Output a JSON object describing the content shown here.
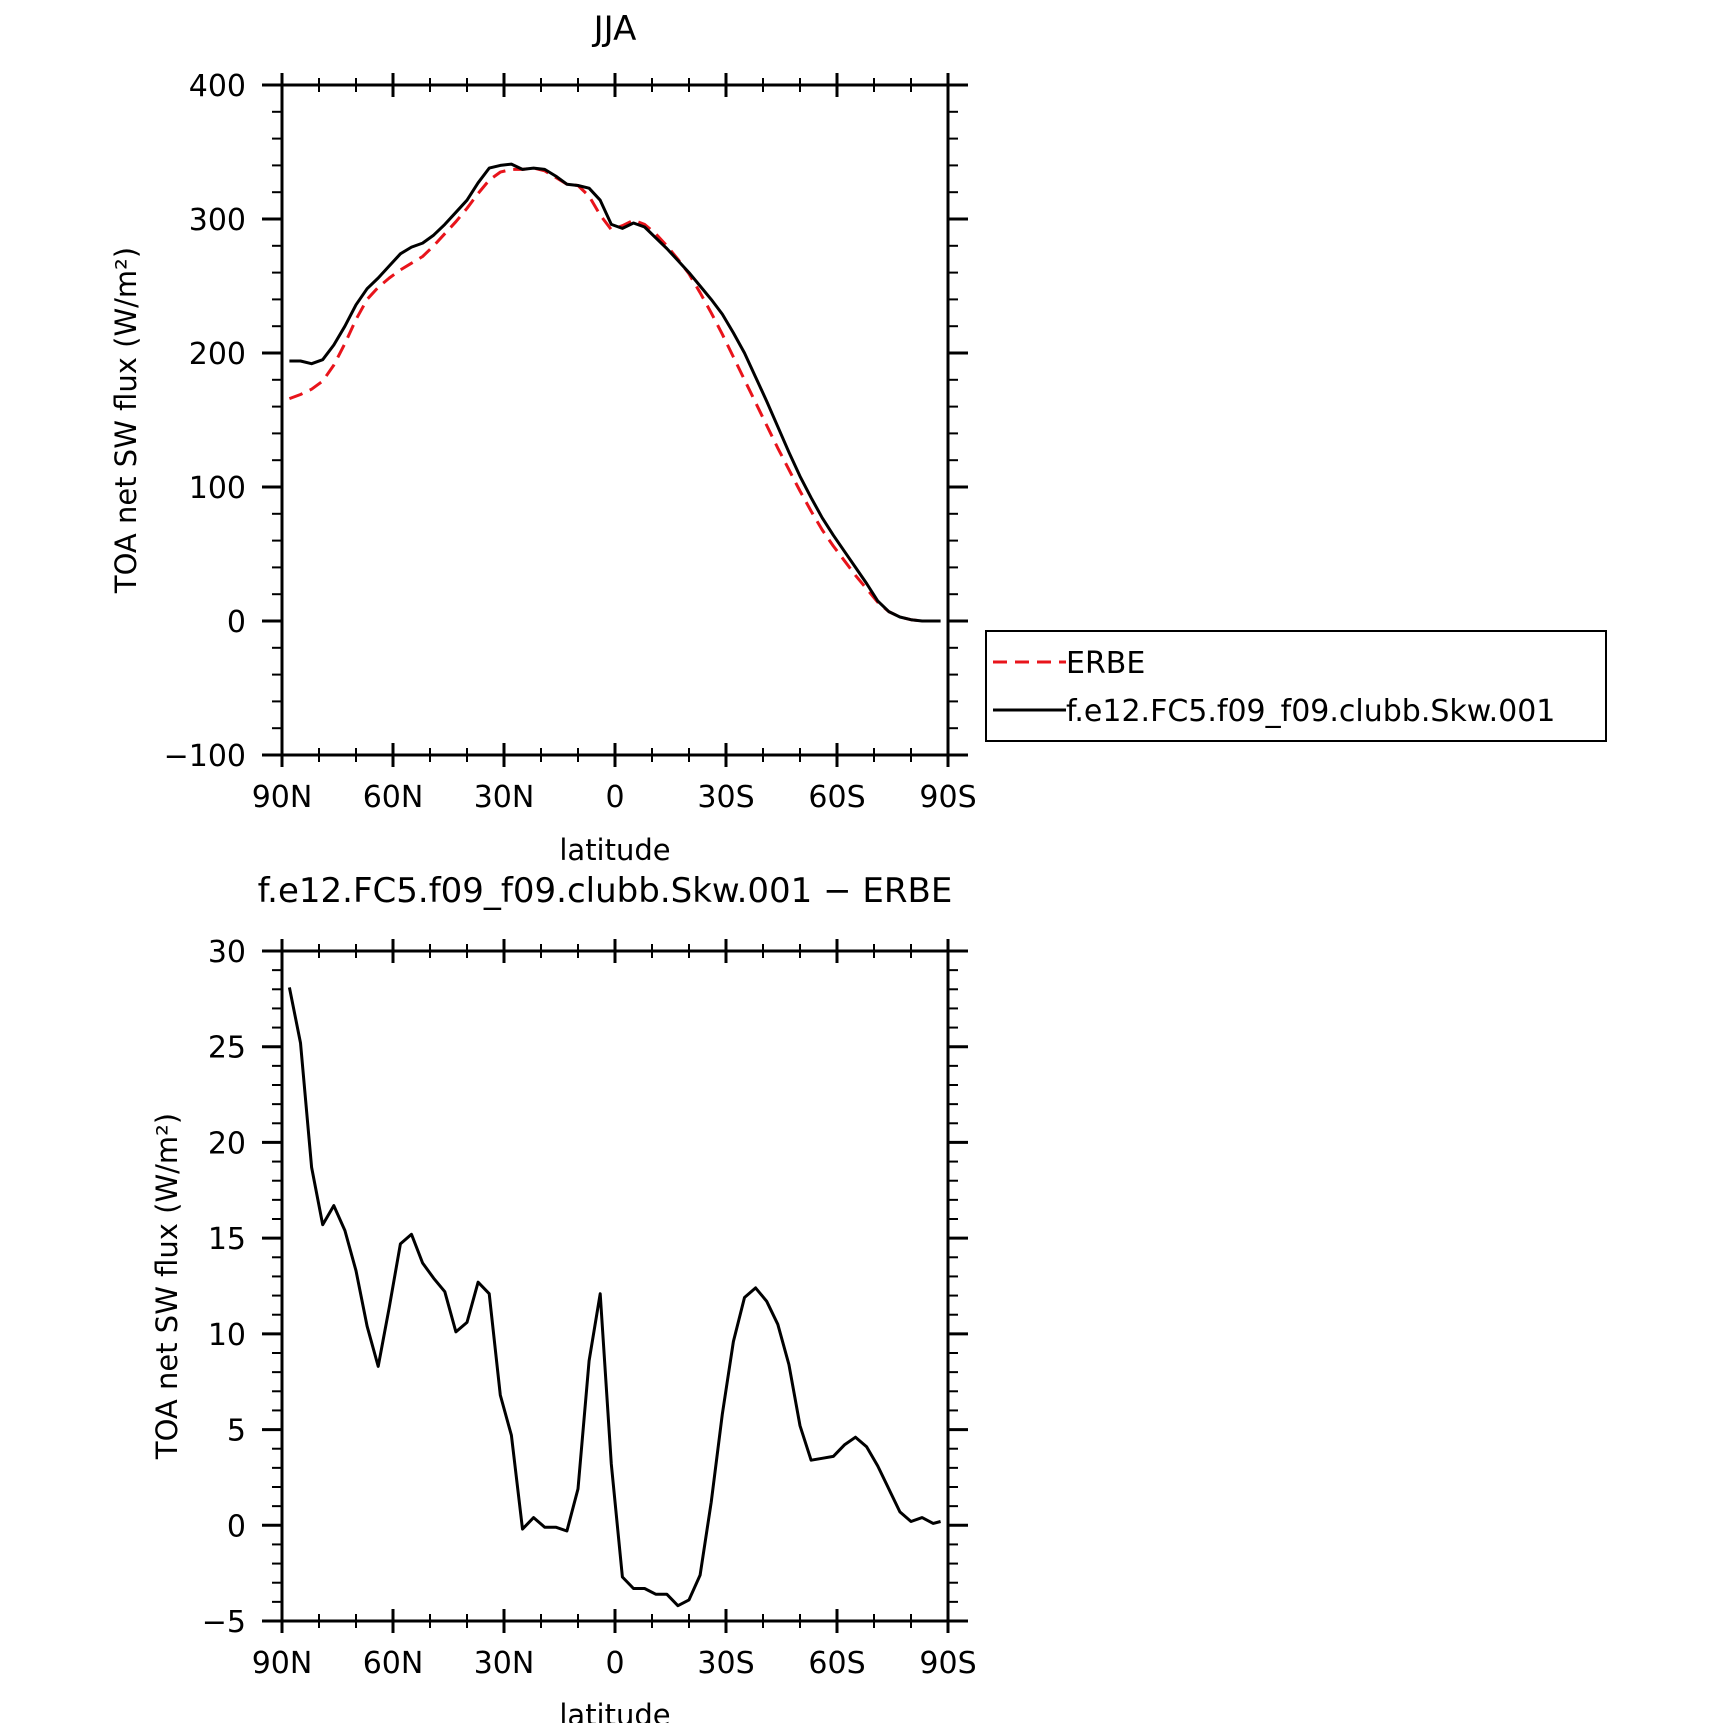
{
  "chart_data": [
    {
      "type": "line",
      "title": "JJA",
      "xlabel": "latitude",
      "ylabel": "TOA net SW flux (W/m²)",
      "ylim": [
        -100,
        400
      ],
      "yticks": [
        -100,
        0,
        100,
        200,
        300,
        400
      ],
      "ytick_labels": [
        "−100",
        "0",
        "100",
        "200",
        "300",
        "400"
      ],
      "xlim": [
        90,
        -90
      ],
      "xticks": [
        90,
        60,
        30,
        0,
        -30,
        -60,
        -90
      ],
      "xtick_labels": [
        "90N",
        "60N",
        "30N",
        "0",
        "30S",
        "60S",
        "90S"
      ],
      "legend_position": "right",
      "series": [
        {
          "name": "ERBE",
          "color": "#e8141b",
          "dash": "dashed",
          "x": [
            88,
            85,
            82,
            79,
            76,
            73,
            70,
            67,
            64,
            61,
            58,
            55,
            52,
            49,
            46,
            43,
            40,
            37,
            34,
            31,
            28,
            25,
            22,
            19,
            16,
            13,
            10,
            7,
            4,
            1,
            -2,
            -5,
            -8,
            -11,
            -14,
            -17,
            -20,
            -23,
            -26,
            -29,
            -32,
            -35,
            -38,
            -41,
            -44,
            -47,
            -50,
            -53,
            -56,
            -59,
            -62,
            -65,
            -68,
            -71,
            -74,
            -77,
            -80,
            -83,
            -86,
            -88
          ],
          "values": [
            166,
            169,
            173,
            179,
            191,
            207,
            225,
            240,
            249,
            256,
            262,
            267,
            272,
            280,
            289,
            298,
            308,
            319,
            329,
            335,
            337,
            337,
            338,
            336,
            331,
            326,
            325,
            317,
            303,
            292,
            295,
            299,
            296,
            289,
            280,
            270,
            259,
            245,
            230,
            214,
            197,
            180,
            163,
            146,
            129,
            113,
            97,
            82,
            68,
            56,
            45,
            34,
            24,
            14,
            7,
            3,
            1,
            0,
            0,
            0
          ]
        },
        {
          "name": "f.e12.FC5.f09_f09.clubb.Skw.001",
          "color": "#000000",
          "dash": "solid",
          "x": [
            88,
            85,
            82,
            79,
            76,
            73,
            70,
            67,
            64,
            61,
            58,
            55,
            52,
            49,
            46,
            43,
            40,
            37,
            34,
            31,
            28,
            25,
            22,
            19,
            16,
            13,
            10,
            7,
            4,
            1,
            -2,
            -5,
            -8,
            -11,
            -14,
            -17,
            -20,
            -23,
            -26,
            -29,
            -32,
            -35,
            -38,
            -41,
            -44,
            -47,
            -50,
            -53,
            -56,
            -59,
            -62,
            -65,
            -68,
            -71,
            -74,
            -77,
            -80,
            -83,
            -86,
            -88
          ],
          "values": [
            194,
            194,
            192,
            195,
            206,
            220,
            236,
            248,
            256,
            265,
            274,
            279,
            282,
            288,
            296,
            305,
            314,
            327,
            338,
            340,
            341,
            337,
            338,
            337,
            332,
            326,
            325,
            323,
            314,
            296,
            293,
            297,
            294,
            286,
            278,
            269,
            260,
            250,
            240,
            229,
            215,
            200,
            182,
            164,
            145,
            126,
            108,
            92,
            77,
            64,
            52,
            40,
            28,
            15,
            7,
            3,
            1,
            0,
            0,
            0
          ]
        }
      ]
    },
    {
      "type": "line",
      "title": "f.e12.FC5.f09_f09.clubb.Skw.001 − ERBE",
      "xlabel": "latitude",
      "ylabel": "TOA net SW flux (W/m²)",
      "ylim": [
        -5,
        30
      ],
      "yticks": [
        -5,
        0,
        5,
        10,
        15,
        20,
        25,
        30
      ],
      "ytick_labels": [
        "−5",
        "0",
        "5",
        "10",
        "15",
        "20",
        "25",
        "30"
      ],
      "xlim": [
        90,
        -90
      ],
      "xticks": [
        90,
        60,
        30,
        0,
        -30,
        -60,
        -90
      ],
      "xtick_labels": [
        "90N",
        "60N",
        "30N",
        "0",
        "30S",
        "60S",
        "90S"
      ],
      "series": [
        {
          "color": "#000000",
          "dash": "solid",
          "x": [
            88,
            85,
            82,
            79,
            76,
            73,
            70,
            67,
            64,
            61,
            58,
            55,
            52,
            49,
            46,
            43,
            40,
            37,
            34,
            31,
            28,
            25,
            22,
            19,
            16,
            13,
            10,
            7,
            4,
            1,
            -2,
            -5,
            -8,
            -11,
            -14,
            -17,
            -20,
            -23,
            -26,
            -29,
            -32,
            -35,
            -38,
            -41,
            -44,
            -47,
            -50,
            -53,
            -56,
            -59,
            -62,
            -65,
            -68,
            -71,
            -74,
            -77,
            -80,
            -83,
            -86,
            -88
          ],
          "values": [
            28.1,
            25.2,
            18.7,
            15.7,
            16.7,
            15.4,
            13.3,
            10.4,
            8.3,
            11.4,
            14.7,
            15.2,
            13.7,
            12.9,
            12.2,
            10.1,
            10.6,
            12.7,
            12.1,
            6.8,
            4.7,
            -0.2,
            0.4,
            -0.1,
            -0.1,
            -0.3,
            1.9,
            8.6,
            12.1,
            3.2,
            -2.7,
            -3.3,
            -3.3,
            -3.6,
            -3.6,
            -4.2,
            -3.9,
            -2.6,
            1.2,
            5.8,
            9.6,
            11.9,
            12.4,
            11.7,
            10.5,
            8.4,
            5.2,
            3.4,
            3.5,
            3.6,
            4.2,
            4.6,
            4.1,
            3.1,
            1.9,
            0.7,
            0.2,
            0.4,
            0.1,
            0.2
          ]
        }
      ]
    }
  ]
}
